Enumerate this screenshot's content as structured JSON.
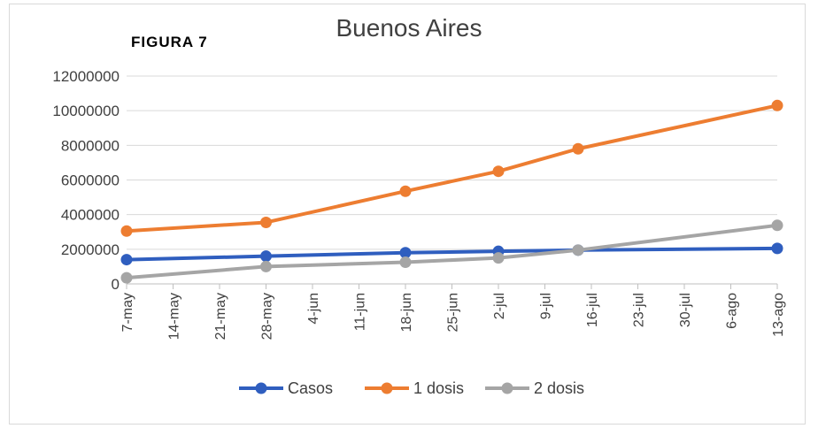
{
  "figure_label": "FIGURA  7",
  "chart_data": {
    "type": "line",
    "title": "Buenos Aires",
    "xlabel": "",
    "ylabel": "",
    "ylim": [
      0,
      12000000
    ],
    "yticks": [
      0,
      2000000,
      4000000,
      6000000,
      8000000,
      10000000,
      12000000
    ],
    "ytick_labels": [
      "0",
      "2000000",
      "4000000",
      "6000000",
      "8000000",
      "10000000",
      "12000000"
    ],
    "x_tick_labels": [
      "7-may",
      "14-may",
      "21-may",
      "28-may",
      "4-jun",
      "11-jun",
      "18-jun",
      "25-jun",
      "2-jul",
      "9-jul",
      "16-jul",
      "23-jul",
      "30-jul",
      "6-ago",
      "13-ago"
    ],
    "grid": true,
    "legend_position": "bottom",
    "series": [
      {
        "name": "Casos",
        "color": "#2f5ebf",
        "x": [
          "7-may",
          "28-may",
          "18-jun",
          "2-jul",
          "14-jul",
          "13-ago"
        ],
        "values": [
          1400000,
          1600000,
          1800000,
          1880000,
          1950000,
          2050000
        ]
      },
      {
        "name": "1 dosis",
        "color": "#ed7d31",
        "x": [
          "7-may",
          "28-may",
          "18-jun",
          "2-jul",
          "14-jul",
          "13-ago"
        ],
        "values": [
          3050000,
          3550000,
          5350000,
          6500000,
          7800000,
          10300000
        ]
      },
      {
        "name": "2 dosis",
        "color": "#a5a5a5",
        "x": [
          "7-may",
          "28-may",
          "18-jun",
          "2-jul",
          "14-jul",
          "13-ago"
        ],
        "values": [
          350000,
          1000000,
          1250000,
          1500000,
          1950000,
          3380000
        ]
      }
    ]
  }
}
